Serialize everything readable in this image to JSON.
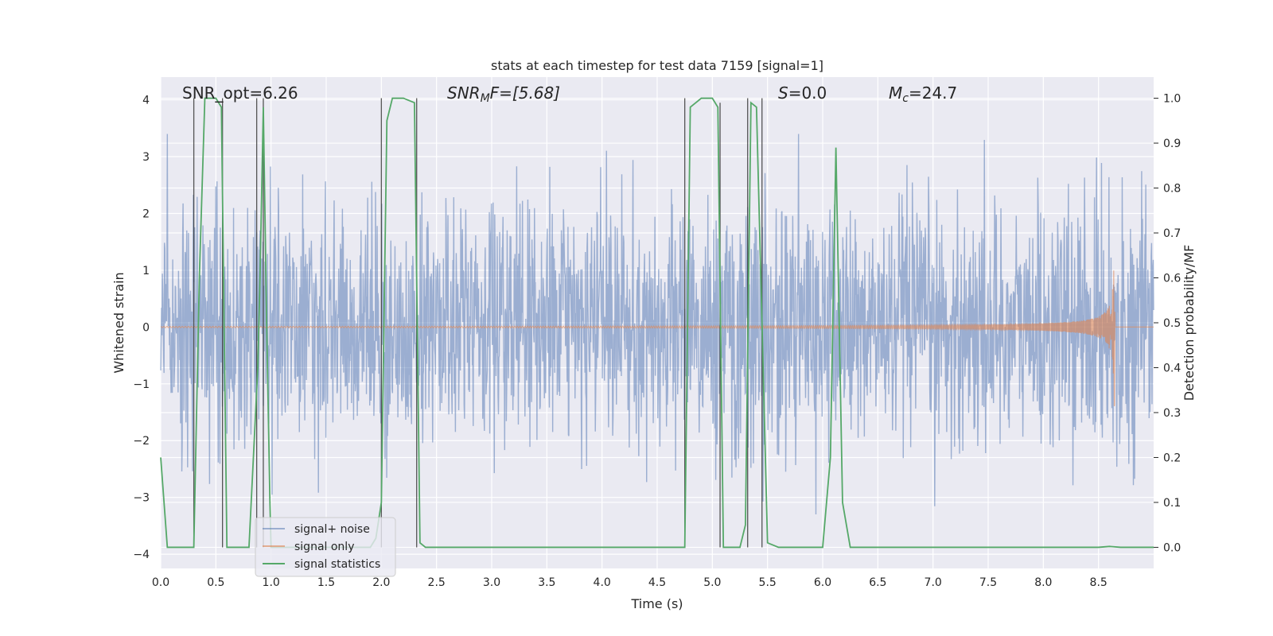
{
  "chart_data": {
    "type": "line",
    "title": "stats at each timestep for test data 7159 [signal=1]",
    "xlabel": "Time (s)",
    "ylabel": "Whitened strain",
    "ylabel_right": "Detection probability/MF",
    "xlim": [
      0.0,
      9.0
    ],
    "ylim": [
      -4.25,
      4.4
    ],
    "ylim_right": [
      -0.047,
      1.047
    ],
    "xticks": [
      "0.0",
      "0.5",
      "1.0",
      "1.5",
      "2.0",
      "2.5",
      "3.0",
      "3.5",
      "4.0",
      "4.5",
      "5.0",
      "5.5",
      "6.0",
      "6.5",
      "7.0",
      "7.5",
      "8.0",
      "8.5"
    ],
    "xtick_values": [
      0.0,
      0.5,
      1.0,
      1.5,
      2.0,
      2.5,
      3.0,
      3.5,
      4.0,
      4.5,
      5.0,
      5.5,
      6.0,
      6.5,
      7.0,
      7.5,
      8.0,
      8.5
    ],
    "yticks": [
      "−4",
      "−3",
      "−2",
      "−1",
      "0",
      "1",
      "2",
      "3",
      "4"
    ],
    "ytick_values": [
      -4,
      -3,
      -2,
      -1,
      0,
      1,
      2,
      3,
      4
    ],
    "yticks_right": [
      "0.0",
      "0.1",
      "0.2",
      "0.3",
      "0.4",
      "0.5",
      "0.6",
      "0.7",
      "0.8",
      "0.9",
      "1.0"
    ],
    "ytick_values_right": [
      0.0,
      0.1,
      0.2,
      0.3,
      0.4,
      0.5,
      0.6,
      0.7,
      0.8,
      0.9,
      1.0
    ],
    "annotations": {
      "snr_opt": "SNR_opt=6.26",
      "snr_mf_name": "SNR",
      "snr_mf_sub": "M",
      "snr_mf_rest": "F=[5.68]",
      "s_name": "S",
      "s_rest": "=0.0",
      "mc_name": "M",
      "mc_sub": "c",
      "mc_rest": "=24.7"
    },
    "legend_position": "lower-left",
    "series": [
      {
        "name": "signal+ noise",
        "color": "#4c72b0",
        "axis": "left",
        "kind": "noise",
        "max_abs": 3.4
      },
      {
        "name": "signal only",
        "color": "#dd8452",
        "axis": "left",
        "kind": "chirp",
        "merger_time": 8.65,
        "peak_amplitude": 1.4
      },
      {
        "name": "signal statistics",
        "color": "#55a868",
        "axis": "right",
        "x": [
          0.0,
          0.06,
          0.25,
          0.3,
          0.35,
          0.4,
          0.5,
          0.55,
          0.6,
          0.8,
          0.88,
          0.9,
          0.93,
          0.96,
          0.99,
          1.0,
          1.9,
          1.95,
          2.0,
          2.05,
          2.1,
          2.2,
          2.3,
          2.35,
          2.4,
          2.45,
          2.55,
          4.75,
          4.8,
          4.9,
          5.0,
          5.05,
          5.1,
          5.25,
          5.3,
          5.35,
          5.4,
          5.45,
          5.5,
          5.6,
          5.7,
          5.8,
          6.0,
          6.07,
          6.12,
          6.18,
          6.25,
          6.3,
          8.5,
          8.6,
          8.7,
          9.0
        ],
        "y": [
          0.2,
          0.0,
          0.0,
          0.0,
          0.6,
          1.0,
          1.0,
          0.98,
          0.0,
          0.0,
          0.4,
          0.6,
          0.98,
          0.5,
          0.1,
          0.0,
          0.0,
          0.02,
          0.1,
          0.95,
          1.0,
          1.0,
          0.99,
          0.01,
          0.0,
          0.0,
          0.0,
          0.0,
          0.98,
          1.0,
          1.0,
          0.98,
          0.0,
          0.0,
          0.05,
          0.99,
          0.98,
          0.5,
          0.01,
          0.0,
          0.0,
          0.0,
          0.0,
          0.2,
          0.89,
          0.1,
          0.0,
          0.0,
          0.0,
          0.002,
          0.0,
          0.0
        ]
      }
    ],
    "vertical_lines": [
      {
        "x": 0.3,
        "top": 1.0
      },
      {
        "x": 0.56,
        "top": 1.0
      },
      {
        "x": 0.87,
        "top": 1.0
      },
      {
        "x": 0.93,
        "top": 1.0
      },
      {
        "x": 2.0,
        "top": 1.0
      },
      {
        "x": 2.32,
        "top": 1.0
      },
      {
        "x": 4.75,
        "top": 1.0
      },
      {
        "x": 5.07,
        "top": 0.99
      },
      {
        "x": 5.32,
        "top": 1.0
      },
      {
        "x": 5.45,
        "top": 1.0
      }
    ]
  }
}
